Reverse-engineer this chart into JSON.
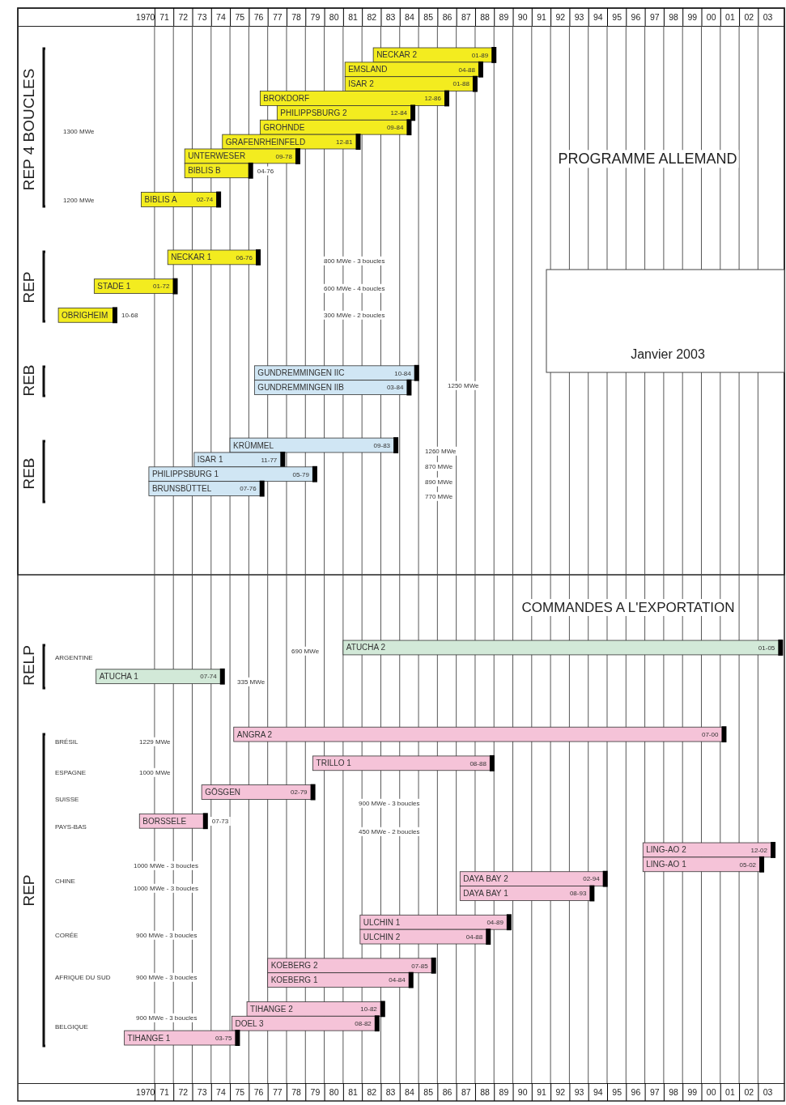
{
  "chart_data": {
    "type": "bar",
    "orientation": "horizontal",
    "grid": "x",
    "categories": [
      "NECKAR 2",
      "EMSLAND",
      "ISAR 2",
      "BROKDORF",
      "PHILIPPSBURG 2",
      "GROHNDE",
      "GRAFENRHEINFELD",
      "UNTERWESER",
      "BIBLIS B",
      null,
      "BIBLIS A",
      null,
      null,
      null,
      "NECKAR 1",
      null,
      "STADE 1",
      null,
      "OBRIGHEIM",
      null,
      null,
      null,
      "GUNDREMMINGEN IIC",
      "GUNDREMMINGEN IIB",
      null,
      null,
      null,
      "KRÜMMEL",
      "ISAR 1",
      "PHILIPPSBURG 1",
      "BRUNSBÜTTEL",
      null,
      null,
      null,
      null,
      null,
      null,
      null,
      null,
      null,
      null,
      "ATUCHA 2",
      null,
      "ATUCHA 1",
      null,
      null,
      null,
      "ANGRA 2",
      null,
      "TRILLO 1",
      null,
      "GÖSGEN",
      null,
      "BORSSELE",
      null,
      "LING-AO 2",
      "LING-AO 1",
      "DAYA BAY 2",
      "DAYA BAY 1",
      null,
      "ULCHIN 1",
      "ULCHIN 2",
      null,
      "KOEBERG 2",
      "KOEBERG 1",
      null,
      "TIHANGE 2",
      "DOEL 3",
      "TIHANGE 1"
    ],
    "base": [
      1982.1,
      1980.6,
      1980.6,
      1976.1,
      1977.0,
      1976.1,
      1974.1,
      1972.1,
      1972.1,
      null,
      1969.8,
      null,
      null,
      null,
      1971.2,
      null,
      1967.3,
      null,
      1965.4,
      null,
      null,
      null,
      1975.8,
      1975.8,
      null,
      null,
      null,
      1974.5,
      1972.6,
      1970.2,
      1970.2,
      null,
      null,
      null,
      null,
      null,
      null,
      null,
      null,
      null,
      null,
      1980.5,
      null,
      1967.4,
      null,
      null,
      null,
      1974.7,
      null,
      1978.9,
      null,
      1973.0,
      null,
      1969.7,
      null,
      1996.4,
      1996.4,
      1986.7,
      1986.7,
      null,
      1981.4,
      1981.4,
      null,
      1976.5,
      1976.5,
      null,
      1975.4,
      1974.6,
      1968.9
    ],
    "values": [
      6.4,
      7.2,
      6.9,
      9.9,
      7.2,
      7.9,
      7.2,
      6.0,
      3.5,
      null,
      4.1,
      null,
      null,
      null,
      4.8,
      null,
      4.3,
      null,
      3.0,
      null,
      null,
      null,
      8.6,
      8.2,
      null,
      null,
      null,
      8.8,
      4.7,
      8.8,
      6.0,
      null,
      null,
      null,
      null,
      null,
      null,
      null,
      null,
      null,
      null,
      23.2,
      null,
      6.7,
      null,
      null,
      null,
      26.0,
      null,
      9.5,
      null,
      5.9,
      null,
      3.5,
      null,
      6.9,
      6.3,
      7.7,
      7.0,
      null,
      7.9,
      6.8,
      null,
      8.8,
      7.6,
      null,
      7.2,
      7.7,
      6.0
    ],
    "colors": [
      "#f3ec1f",
      "#f3ec1f",
      "#f3ec1f",
      "#f3ec1f",
      "#f3ec1f",
      "#f3ec1f",
      "#f3ec1f",
      "#f3ec1f",
      "#f3ec1f",
      null,
      "#f3ec1f",
      null,
      null,
      null,
      "#f3ec1f",
      null,
      "#f3ec1f",
      null,
      "#f3ec1f",
      null,
      null,
      null,
      "#d0e6f4",
      "#d0e6f4",
      null,
      null,
      null,
      "#d0e6f4",
      "#d0e6f4",
      "#d0e6f4",
      "#d0e6f4",
      null,
      null,
      null,
      null,
      null,
      null,
      null,
      null,
      null,
      null,
      "#d2e9d8",
      null,
      "#d2e9d8",
      null,
      null,
      null,
      "#f5c3d8",
      null,
      "#f5c3d8",
      null,
      "#f5c3d8",
      null,
      "#f5c3d8",
      null,
      "#f5c3d8",
      "#f5c3d8",
      "#f5c3d8",
      "#f5c3d8",
      null,
      "#f5c3d8",
      "#f5c3d8",
      null,
      "#f5c3d8",
      "#f5c3d8",
      null,
      "#f5c3d8",
      "#f5c3d8",
      "#f5c3d8"
    ],
    "value_labels": [
      "01-89",
      "04-88",
      "01-88",
      "12-86",
      "12-84",
      "09-84",
      "12-81",
      "09-78",
      "04-76",
      null,
      "02-74",
      null,
      null,
      null,
      "06-76",
      null,
      "01-72",
      null,
      "10-68",
      null,
      null,
      null,
      "10-84",
      "03-84",
      null,
      null,
      null,
      "09-83",
      "11-77",
      "05-79",
      "07-76",
      null,
      null,
      null,
      null,
      null,
      null,
      null,
      null,
      null,
      null,
      "01-05",
      null,
      "07-74",
      null,
      null,
      null,
      "07-00",
      null,
      "08-88",
      null,
      "02-79",
      null,
      "07-73",
      null,
      "12-02",
      "05-02",
      "02-94",
      "08-93",
      null,
      "04-89",
      "04-88",
      null,
      "07-85",
      "04-84",
      null,
      "10-82",
      "08-82",
      "03-75"
    ],
    "xlim": [
      1963.25,
      2003.9
    ],
    "xticks": [
      {
        "value": 1970,
        "label": "1970"
      },
      {
        "value": 1970.5,
        "label": null
      },
      {
        "value": 1971,
        "label": "71"
      },
      {
        "value": 1971.5,
        "label": null
      },
      {
        "value": 1972,
        "label": "72"
      },
      {
        "value": 1972.5,
        "label": null
      },
      {
        "value": 1973,
        "label": "73"
      },
      {
        "value": 1973.5,
        "label": null
      },
      {
        "value": 1974,
        "label": "74"
      },
      {
        "value": 1974.5,
        "label": null
      },
      {
        "value": 1975,
        "label": "75"
      },
      {
        "value": 1975.5,
        "label": null
      },
      {
        "value": 1976,
        "label": "76"
      },
      {
        "value": 1976.5,
        "label": null
      },
      {
        "value": 1977,
        "label": "77"
      },
      {
        "value": 1977.5,
        "label": null
      },
      {
        "value": 1978,
        "label": "78"
      },
      {
        "value": 1978.5,
        "label": null
      },
      {
        "value": 1979,
        "label": "79"
      },
      {
        "value": 1979.5,
        "label": null
      },
      {
        "value": 1980,
        "label": "80"
      },
      {
        "value": 1980.5,
        "label": null
      },
      {
        "value": 1981,
        "label": "81"
      },
      {
        "value": 1981.5,
        "label": null
      },
      {
        "value": 1982,
        "label": "82"
      },
      {
        "value": 1982.5,
        "label": null
      },
      {
        "value": 1983,
        "label": "83"
      },
      {
        "value": 1983.5,
        "label": null
      },
      {
        "value": 1984,
        "label": "84"
      },
      {
        "value": 1984.5,
        "label": null
      },
      {
        "value": 1985,
        "label": "85"
      },
      {
        "value": 1985.5,
        "label": null
      },
      {
        "value": 1986,
        "label": "86"
      },
      {
        "value": 1986.5,
        "label": null
      },
      {
        "value": 1987,
        "label": "87"
      },
      {
        "value": 1987.5,
        "label": null
      },
      {
        "value": 1988,
        "label": "88"
      },
      {
        "value": 1988.5,
        "label": null
      },
      {
        "value": 1989,
        "label": "89"
      },
      {
        "value": 1989.5,
        "label": null
      },
      {
        "value": 1990,
        "label": "90"
      },
      {
        "value": 1990.5,
        "label": null
      },
      {
        "value": 1991,
        "label": "91"
      },
      {
        "value": 1991.5,
        "label": null
      },
      {
        "value": 1992,
        "label": "92"
      },
      {
        "value": 1992.5,
        "label": null
      },
      {
        "value": 1993,
        "label": "93"
      },
      {
        "value": 1993.5,
        "label": null
      },
      {
        "value": 1994,
        "label": "94"
      },
      {
        "value": 1994.5,
        "label": null
      },
      {
        "value": 1995,
        "label": "95"
      },
      {
        "value": 1995.5,
        "label": null
      },
      {
        "value": 1996,
        "label": "96"
      },
      {
        "value": 1996.5,
        "label": null
      },
      {
        "value": 1997,
        "label": "97"
      },
      {
        "value": 1997.5,
        "label": null
      },
      {
        "value": 1998,
        "label": "98"
      },
      {
        "value": 1998.5,
        "label": null
      },
      {
        "value": 1999,
        "label": "99"
      },
      {
        "value": 1999.5,
        "label": null
      },
      {
        "value": 2000,
        "label": "00"
      },
      {
        "value": 2000.5,
        "label": null
      },
      {
        "value": 2001,
        "label": "01"
      },
      {
        "value": 2001.5,
        "label": null
      },
      {
        "value": 2002,
        "label": "02"
      },
      {
        "value": 2002.5,
        "label": null
      },
      {
        "value": 2003,
        "label": "03"
      }
    ],
    "x2lim": [
      1963.25,
      2003.9
    ],
    "x2ticks": [
      {
        "value": 1970,
        "label": "1970"
      },
      {
        "value": 1970.5,
        "label": null
      },
      {
        "value": 1971,
        "label": "71"
      },
      {
        "value": 1971.5,
        "label": null
      },
      {
        "value": 1972,
        "label": "72"
      },
      {
        "value": 1972.5,
        "label": null
      },
      {
        "value": 1973,
        "label": "73"
      },
      {
        "value": 1973.5,
        "label": null
      },
      {
        "value": 1974,
        "label": "74"
      },
      {
        "value": 1974.5,
        "label": null
      },
      {
        "value": 1975,
        "label": "75"
      },
      {
        "value": 1975.5,
        "label": null
      },
      {
        "value": 1976,
        "label": "76"
      },
      {
        "value": 1976.5,
        "label": null
      },
      {
        "value": 1977,
        "label": "77"
      },
      {
        "value": 1977.5,
        "label": null
      },
      {
        "value": 1978,
        "label": "78"
      },
      {
        "value": 1978.5,
        "label": null
      },
      {
        "value": 1979,
        "label": "79"
      },
      {
        "value": 1979.5,
        "label": null
      },
      {
        "value": 1980,
        "label": "80"
      },
      {
        "value": 1980.5,
        "label": null
      },
      {
        "value": 1981,
        "label": "81"
      },
      {
        "value": 1981.5,
        "label": null
      },
      {
        "value": 1982,
        "label": "82"
      },
      {
        "value": 1982.5,
        "label": null
      },
      {
        "value": 1983,
        "label": "83"
      },
      {
        "value": 1983.5,
        "label": null
      },
      {
        "value": 1984,
        "label": "84"
      },
      {
        "value": 1984.5,
        "label": null
      },
      {
        "value": 1985,
        "label": "85"
      },
      {
        "value": 1985.5,
        "label": null
      },
      {
        "value": 1986,
        "label": "86"
      },
      {
        "value": 1986.5,
        "label": null
      },
      {
        "value": 1987,
        "label": "87"
      },
      {
        "value": 1987.5,
        "label": null
      },
      {
        "value": 1988,
        "label": "88"
      },
      {
        "value": 1988.5,
        "label": null
      },
      {
        "value": 1989,
        "label": "89"
      },
      {
        "value": 1989.5,
        "label": null
      },
      {
        "value": 1990,
        "label": "90"
      },
      {
        "value": 1990.5,
        "label": null
      },
      {
        "value": 1991,
        "label": "91"
      },
      {
        "value": 1991.5,
        "label": null
      },
      {
        "value": 1992,
        "label": "92"
      },
      {
        "value": 1992.5,
        "label": null
      },
      {
        "value": 1993,
        "label": "93"
      },
      {
        "value": 1993.5,
        "label": null
      },
      {
        "value": 1994,
        "label": "94"
      },
      {
        "value": 1994.5,
        "label": null
      },
      {
        "value": 1995,
        "label": "95"
      },
      {
        "value": 1995.5,
        "label": null
      },
      {
        "value": 1996,
        "label": "96"
      },
      {
        "value": 1996.5,
        "label": null
      },
      {
        "value": 1997,
        "label": "97"
      },
      {
        "value": 1997.5,
        "label": null
      },
      {
        "value": 1998,
        "label": "98"
      },
      {
        "value": 1998.5,
        "label": null
      },
      {
        "value": 1999,
        "label": "99"
      },
      {
        "value": 1999.5,
        "label": null
      },
      {
        "value": 2000,
        "label": "00"
      },
      {
        "value": 2000.5,
        "label": null
      },
      {
        "value": 2001,
        "label": "01"
      },
      {
        "value": 2001.5,
        "label": null
      },
      {
        "value": 2002,
        "label": "02"
      },
      {
        "value": 2002.5,
        "label": null
      },
      {
        "value": 2003,
        "label": "03"
      }
    ],
    "annotations": [
      "PROGRAMME ALLEMAND",
      "COMMANDES A L'EXPORTATION",
      "Janvier 2003",
      "REP 4 BOUCLES",
      "REP",
      "REB",
      "REB",
      "RELP",
      "REP",
      "1300 MWe",
      "1200 MWe",
      "800 MWe - 3 boucles",
      "600 MWe - 4 boucles",
      "300 MWe - 2 boucles",
      "1250 MWe",
      "1260 MWe",
      "870 MWe",
      "890 MWe",
      "770 MWe",
      "ARGENTINE",
      "690 MWe",
      "335 MWe",
      "BRÉSIL",
      "1229 MWe",
      "ESPAGNE",
      "1000 MWe",
      "SUISSE",
      "PAYS-BAS",
      "900 MWe - 3 boucles",
      "450 MWe - 2 boucles",
      "CHINE",
      "1000 MWe - 3 boucles",
      "1000 MWe - 3 boucles",
      "CORÉE",
      "900 MWe - 3 boucles",
      "AFRIQUE DU SUD",
      "900 MWe - 3 boucles",
      "BELGIQUE",
      "900 MWe - 3 boucles"
    ]
  }
}
